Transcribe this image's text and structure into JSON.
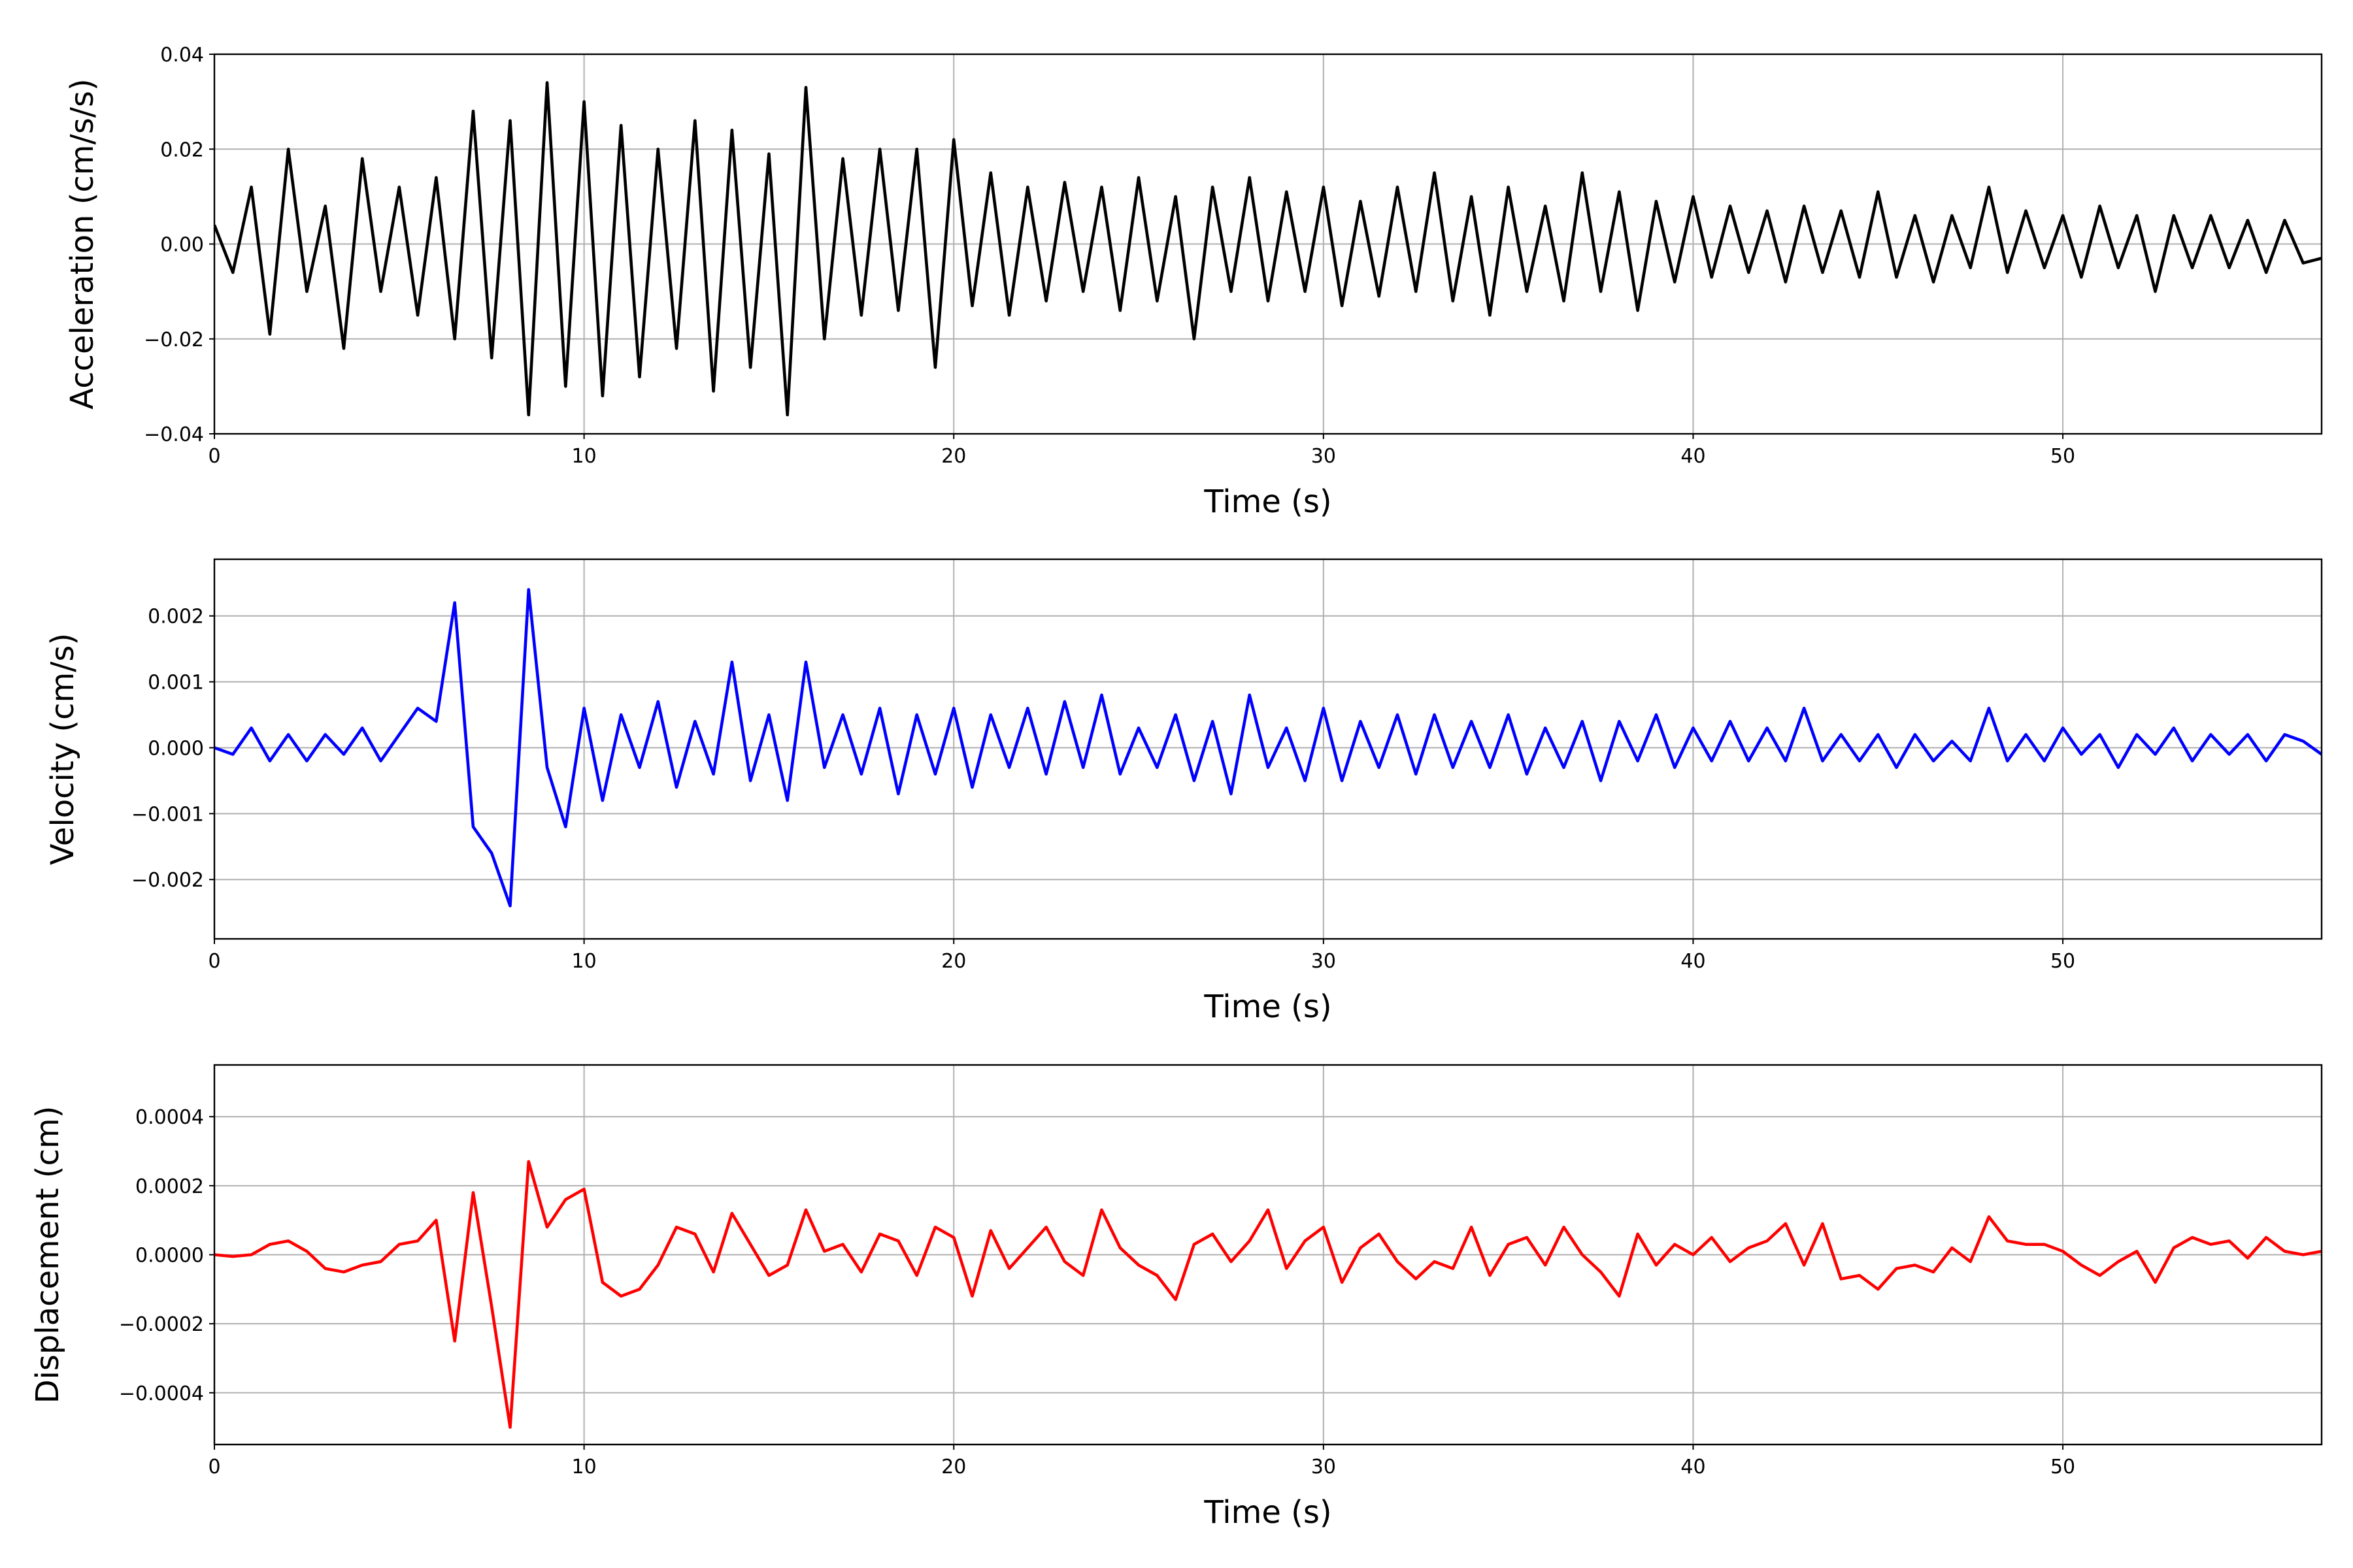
{
  "chart_data": [
    {
      "type": "line",
      "ylabel": "Acceleration (cm/s/s)",
      "xlabel": "Time (s)",
      "color": "#000000",
      "grid": true,
      "xlim": [
        0,
        57
      ],
      "xticks": [
        0,
        10,
        20,
        30,
        40,
        50
      ],
      "ylim": [
        -0.04,
        0.04
      ],
      "yticks": [
        {
          "value": -0.04,
          "label": "−0.04"
        },
        {
          "value": -0.02,
          "label": "−0.02"
        },
        {
          "value": 0,
          "label": "0.00"
        },
        0.02,
        0.04
      ],
      "x": [
        0,
        0.5,
        1,
        1.5,
        2,
        2.5,
        3,
        3.5,
        4,
        4.5,
        5,
        5.5,
        6,
        6.5,
        7,
        7.5,
        8,
        8.5,
        9,
        9.5,
        10,
        10.5,
        11,
        11.5,
        12,
        12.5,
        13,
        13.5,
        14,
        14.5,
        15,
        15.5,
        16,
        16.5,
        17,
        17.5,
        18,
        18.5,
        19,
        19.5,
        20,
        20.5,
        21,
        21.5,
        22,
        22.5,
        23,
        23.5,
        24,
        24.5,
        25,
        25.5,
        26,
        26.5,
        27,
        27.5,
        28,
        28.5,
        29,
        29.5,
        30,
        30.5,
        31,
        31.5,
        32,
        32.5,
        33,
        33.5,
        34,
        34.5,
        35,
        35.5,
        36,
        36.5,
        37,
        37.5,
        38,
        38.5,
        39,
        39.5,
        40,
        40.5,
        41,
        41.5,
        42,
        42.5,
        43,
        43.5,
        44,
        44.5,
        45,
        45.5,
        46,
        46.5,
        47,
        47.5,
        48,
        48.5,
        49,
        49.5,
        50,
        50.5,
        51,
        51.5,
        52,
        52.5,
        53,
        53.5,
        54,
        54.5,
        55,
        55.5,
        56,
        56.5,
        57
      ],
      "values": [
        0.004,
        -0.006,
        0.012,
        -0.019,
        0.02,
        -0.01,
        0.008,
        -0.022,
        0.018,
        -0.01,
        0.012,
        -0.015,
        0.014,
        -0.02,
        0.028,
        -0.024,
        0.026,
        -0.036,
        0.034,
        -0.03,
        0.03,
        -0.032,
        0.025,
        -0.028,
        0.02,
        -0.022,
        0.026,
        -0.031,
        0.024,
        -0.026,
        0.019,
        -0.036,
        0.033,
        -0.02,
        0.018,
        -0.015,
        0.02,
        -0.014,
        0.02,
        -0.026,
        0.022,
        -0.013,
        0.015,
        -0.015,
        0.012,
        -0.012,
        0.013,
        -0.01,
        0.012,
        -0.014,
        0.014,
        -0.012,
        0.01,
        -0.02,
        0.012,
        -0.01,
        0.014,
        -0.012,
        0.011,
        -0.01,
        0.012,
        -0.013,
        0.009,
        -0.011,
        0.012,
        -0.01,
        0.015,
        -0.012,
        0.01,
        -0.015,
        0.012,
        -0.01,
        0.008,
        -0.012,
        0.015,
        -0.01,
        0.011,
        -0.014,
        0.009,
        -0.008,
        0.01,
        -0.007,
        0.008,
        -0.006,
        0.007,
        -0.008,
        0.008,
        -0.006,
        0.007,
        -0.007,
        0.011,
        -0.007,
        0.006,
        -0.008,
        0.006,
        -0.005,
        0.012,
        -0.006,
        0.007,
        -0.005,
        0.006,
        -0.007,
        0.008,
        -0.005,
        0.006,
        -0.01,
        0.006,
        -0.005,
        0.006,
        -0.005,
        0.005,
        -0.006,
        0.005,
        -0.004,
        -0.003
      ]
    },
    {
      "type": "line",
      "ylabel": "Velocity (cm/s)",
      "xlabel": "Time (s)",
      "color": "#0000ff",
      "grid": true,
      "xlim": [
        0,
        57
      ],
      "xticks": [
        0,
        10,
        20,
        30,
        40,
        50
      ],
      "ylim": [
        -0.0029,
        0.00286
      ],
      "yticks": [
        {
          "value": -0.002,
          "label": "−0.002"
        },
        {
          "value": -0.001,
          "label": "−0.001"
        },
        {
          "value": 0,
          "label": "0.000"
        },
        0.001,
        0.002
      ],
      "x": [
        0,
        0.5,
        1,
        1.5,
        2,
        2.5,
        3,
        3.5,
        4,
        4.5,
        5,
        5.5,
        6,
        6.5,
        7,
        7.5,
        8,
        8.5,
        9,
        9.5,
        10,
        10.5,
        11,
        11.5,
        12,
        12.5,
        13,
        13.5,
        14,
        14.5,
        15,
        15.5,
        16,
        16.5,
        17,
        17.5,
        18,
        18.5,
        19,
        19.5,
        20,
        20.5,
        21,
        21.5,
        22,
        22.5,
        23,
        23.5,
        24,
        24.5,
        25,
        25.5,
        26,
        26.5,
        27,
        27.5,
        28,
        28.5,
        29,
        29.5,
        30,
        30.5,
        31,
        31.5,
        32,
        32.5,
        33,
        33.5,
        34,
        34.5,
        35,
        35.5,
        36,
        36.5,
        37,
        37.5,
        38,
        38.5,
        39,
        39.5,
        40,
        40.5,
        41,
        41.5,
        42,
        42.5,
        43,
        43.5,
        44,
        44.5,
        45,
        45.5,
        46,
        46.5,
        47,
        47.5,
        48,
        48.5,
        49,
        49.5,
        50,
        50.5,
        51,
        51.5,
        52,
        52.5,
        53,
        53.5,
        54,
        54.5,
        55,
        55.5,
        56,
        56.5,
        57
      ],
      "values": [
        0,
        -0.0001,
        0.0003,
        -0.0002,
        0.0002,
        -0.0002,
        0.0002,
        -0.0001,
        0.0003,
        -0.0002,
        0.0002,
        0.0006,
        0.0004,
        0.0022,
        -0.0012,
        -0.0016,
        -0.0024,
        0.0024,
        -0.0003,
        -0.0012,
        0.0006,
        -0.0008,
        0.0005,
        -0.0003,
        0.0007,
        -0.0006,
        0.0004,
        -0.0004,
        0.0013,
        -0.0005,
        0.0005,
        -0.0008,
        0.0013,
        -0.0003,
        0.0005,
        -0.0004,
        0.0006,
        -0.0007,
        0.0005,
        -0.0004,
        0.0006,
        -0.0006,
        0.0005,
        -0.0003,
        0.0006,
        -0.0004,
        0.0007,
        -0.0003,
        0.0008,
        -0.0004,
        0.0003,
        -0.0003,
        0.0005,
        -0.0005,
        0.0004,
        -0.0007,
        0.0008,
        -0.0003,
        0.0003,
        -0.0005,
        0.0006,
        -0.0005,
        0.0004,
        -0.0003,
        0.0005,
        -0.0004,
        0.0005,
        -0.0003,
        0.0004,
        -0.0003,
        0.0005,
        -0.0004,
        0.0003,
        -0.0003,
        0.0004,
        -0.0005,
        0.0004,
        -0.0002,
        0.0005,
        -0.0003,
        0.0003,
        -0.0002,
        0.0004,
        -0.0002,
        0.0003,
        -0.0002,
        0.0006,
        -0.0002,
        0.0002,
        -0.0002,
        0.0002,
        -0.0003,
        0.0002,
        -0.0002,
        0.0001,
        -0.0002,
        0.0006,
        -0.0002,
        0.0002,
        -0.0002,
        0.0003,
        -0.0001,
        0.0002,
        -0.0003,
        0.0002,
        -0.0001,
        0.0003,
        -0.0002,
        0.0002,
        -0.0001,
        0.0002,
        -0.0002,
        0.0002,
        0.0001,
        -0.0001
      ]
    },
    {
      "type": "line",
      "ylabel": "Displacement (cm)",
      "xlabel": "Time (s)",
      "color": "#ff0000",
      "grid": true,
      "xlim": [
        0,
        57
      ],
      "xticks": [
        0,
        10,
        20,
        30,
        40,
        50
      ],
      "ylim": [
        -0.00055,
        0.00055
      ],
      "yticks": [
        {
          "value": -0.0004,
          "label": "−0.0004"
        },
        {
          "value": -0.0002,
          "label": "−0.0002"
        },
        {
          "value": 0,
          "label": "0.0000"
        },
        0.0002,
        0.0004
      ],
      "x": [
        0,
        0.5,
        1,
        1.5,
        2,
        2.5,
        3,
        3.5,
        4,
        4.5,
        5,
        5.5,
        6,
        6.5,
        7,
        7.5,
        8,
        8.5,
        9,
        9.5,
        10,
        10.5,
        11,
        11.5,
        12,
        12.5,
        13,
        13.5,
        14,
        14.5,
        15,
        15.5,
        16,
        16.5,
        17,
        17.5,
        18,
        18.5,
        19,
        19.5,
        20,
        20.5,
        21,
        21.5,
        22,
        22.5,
        23,
        23.5,
        24,
        24.5,
        25,
        25.5,
        26,
        26.5,
        27,
        27.5,
        28,
        28.5,
        29,
        29.5,
        30,
        30.5,
        31,
        31.5,
        32,
        32.5,
        33,
        33.5,
        34,
        34.5,
        35,
        35.5,
        36,
        36.5,
        37,
        37.5,
        38,
        38.5,
        39,
        39.5,
        40,
        40.5,
        41,
        41.5,
        42,
        42.5,
        43,
        43.5,
        44,
        44.5,
        45,
        45.5,
        46,
        46.5,
        47,
        47.5,
        48,
        48.5,
        49,
        49.5,
        50,
        50.5,
        51,
        51.5,
        52,
        52.5,
        53,
        53.5,
        54,
        54.5,
        55,
        55.5,
        56,
        56.5,
        57
      ],
      "values": [
        0,
        -5e-06,
        0,
        3e-05,
        4e-05,
        1e-05,
        -4e-05,
        -5e-05,
        -3e-05,
        -2e-05,
        3e-05,
        4e-05,
        0.0001,
        -0.00025,
        0.00018,
        -0.00015,
        -0.0005,
        0.00027,
        8e-05,
        0.00016,
        0.00019,
        -8e-05,
        -0.00012,
        -0.0001,
        -3e-05,
        8e-05,
        6e-05,
        -5e-05,
        0.00012,
        3e-05,
        -6e-05,
        -3e-05,
        0.00013,
        1e-05,
        3e-05,
        -5e-05,
        6e-05,
        4e-05,
        -6e-05,
        8e-05,
        5e-05,
        -0.00012,
        7e-05,
        -4e-05,
        2e-05,
        8e-05,
        -2e-05,
        -6e-05,
        0.00013,
        2e-05,
        -3e-05,
        -6e-05,
        -0.00013,
        3e-05,
        6e-05,
        -2e-05,
        4e-05,
        0.00013,
        -4e-05,
        4e-05,
        8e-05,
        -8e-05,
        2e-05,
        6e-05,
        -2e-05,
        -7e-05,
        -2e-05,
        -4e-05,
        8e-05,
        -6e-05,
        3e-05,
        5e-05,
        -3e-05,
        8e-05,
        0,
        -5e-05,
        -0.00012,
        6e-05,
        -3e-05,
        3e-05,
        0,
        5e-05,
        -2e-05,
        2e-05,
        4e-05,
        9e-05,
        -3e-05,
        9e-05,
        -7e-05,
        -6e-05,
        -0.0001,
        -4e-05,
        -3e-05,
        -5e-05,
        2e-05,
        -2e-05,
        0.00011,
        4e-05,
        3e-05,
        3e-05,
        1e-05,
        -3e-05,
        -6e-05,
        -2e-05,
        1e-05,
        -8e-05,
        2e-05,
        5e-05,
        3e-05,
        4e-05,
        -1e-05,
        5e-05,
        1e-05,
        0,
        1e-05
      ]
    }
  ]
}
